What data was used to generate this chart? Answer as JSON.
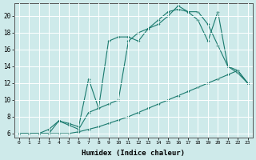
{
  "xlabel": "Humidex (Indice chaleur)",
  "bg_color": "#ceeaea",
  "line_color": "#1a7a6e",
  "grid_color": "#ffffff",
  "xlim": [
    -0.5,
    23.5
  ],
  "ylim": [
    5.5,
    21.5
  ],
  "xticks": [
    0,
    1,
    2,
    3,
    4,
    5,
    6,
    7,
    8,
    9,
    10,
    11,
    12,
    13,
    14,
    15,
    16,
    17,
    18,
    19,
    20,
    21,
    22,
    23
  ],
  "yticks": [
    6,
    8,
    10,
    12,
    14,
    16,
    18,
    20
  ],
  "lx1": [
    0,
    1,
    2,
    3,
    4,
    5,
    6,
    7,
    8,
    9,
    10,
    11,
    12,
    13,
    14,
    15,
    16,
    17,
    18,
    19,
    20,
    21,
    22,
    23
  ],
  "ly1": [
    6,
    6,
    6,
    6,
    6,
    6,
    6.2,
    6.5,
    6.8,
    7.2,
    7.6,
    8.0,
    8.5,
    9.0,
    9.5,
    10.0,
    10.5,
    11.0,
    11.5,
    12.0,
    12.5,
    13.0,
    13.5,
    12.0
  ],
  "lx2": [
    0,
    1,
    2,
    3,
    4,
    5,
    6,
    7,
    8,
    9,
    10,
    11,
    12,
    13,
    14,
    15,
    16,
    17,
    18,
    19,
    20,
    21,
    22,
    23
  ],
  "ly2": [
    6,
    6,
    6,
    6.5,
    7.5,
    7,
    6.5,
    8.5,
    9,
    17,
    17.5,
    17.5,
    17,
    18.5,
    19,
    20,
    21.2,
    20.5,
    20.5,
    19,
    16.5,
    14,
    13.5,
    12
  ],
  "lx3": [
    0,
    1,
    2,
    3,
    4,
    5,
    6,
    7,
    8,
    9,
    10,
    11,
    12,
    13,
    14,
    15,
    16,
    17,
    18,
    19,
    20,
    21,
    22,
    23
  ],
  "ly3": [
    6,
    6,
    6,
    6,
    7.5,
    7.2,
    6.8,
    12.5,
    9,
    9.5,
    10,
    17,
    18,
    18.5,
    19.5,
    20.5,
    20.8,
    20.5,
    19.5,
    17,
    20.5,
    14,
    13.2,
    12
  ]
}
